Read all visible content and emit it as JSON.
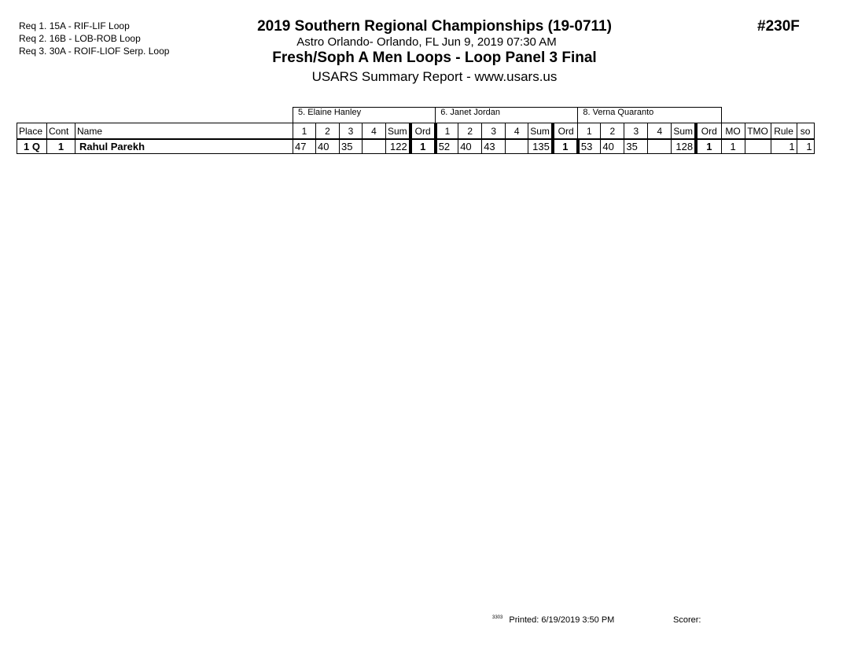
{
  "requirements": [
    "Req 1.  15A - RIF-LIF Loop",
    "Req 2.  16B - LOB-ROB Loop",
    "Req 3.  30A - ROIF-LIOF Serp. Loop"
  ],
  "header": {
    "title": "2019 Southern Regional Championships (19-0711)",
    "venue": "Astro Orlando- Orlando, FL  Jun 9, 2019  07:30 AM",
    "event": "Fresh/Soph A Men Loops - Loop Panel 3 Final",
    "report": "USARS Summary Report - www.usars.us",
    "event_number": "#230F"
  },
  "table": {
    "judges": [
      "5.  Elaine Hanley",
      "6.  Janet Jordan",
      "8.  Verna Quaranto"
    ],
    "columns": {
      "place": "Place",
      "cont": "Cont",
      "name": "Name",
      "judge_cols": [
        "1",
        "2",
        "3",
        "4",
        "Sum",
        "Ord"
      ],
      "mo": "MO",
      "tmo": "TMO",
      "rule": "Rule",
      "so": "so"
    },
    "rows": [
      {
        "place": "1 Q",
        "cont": "1",
        "name": "Rahul Parekh",
        "judges": [
          [
            "47",
            "40",
            "35",
            "",
            "122",
            "1"
          ],
          [
            "52",
            "40",
            "43",
            "",
            "135",
            "1"
          ],
          [
            "53",
            "40",
            "35",
            "",
            "128",
            "1"
          ]
        ],
        "mo": "1",
        "tmo": "",
        "rule": "1",
        "so": "1"
      }
    ]
  },
  "footer": {
    "code": "3303",
    "printed": "Printed:  6/19/2019  3:50 PM",
    "scorer": "Scorer:"
  }
}
